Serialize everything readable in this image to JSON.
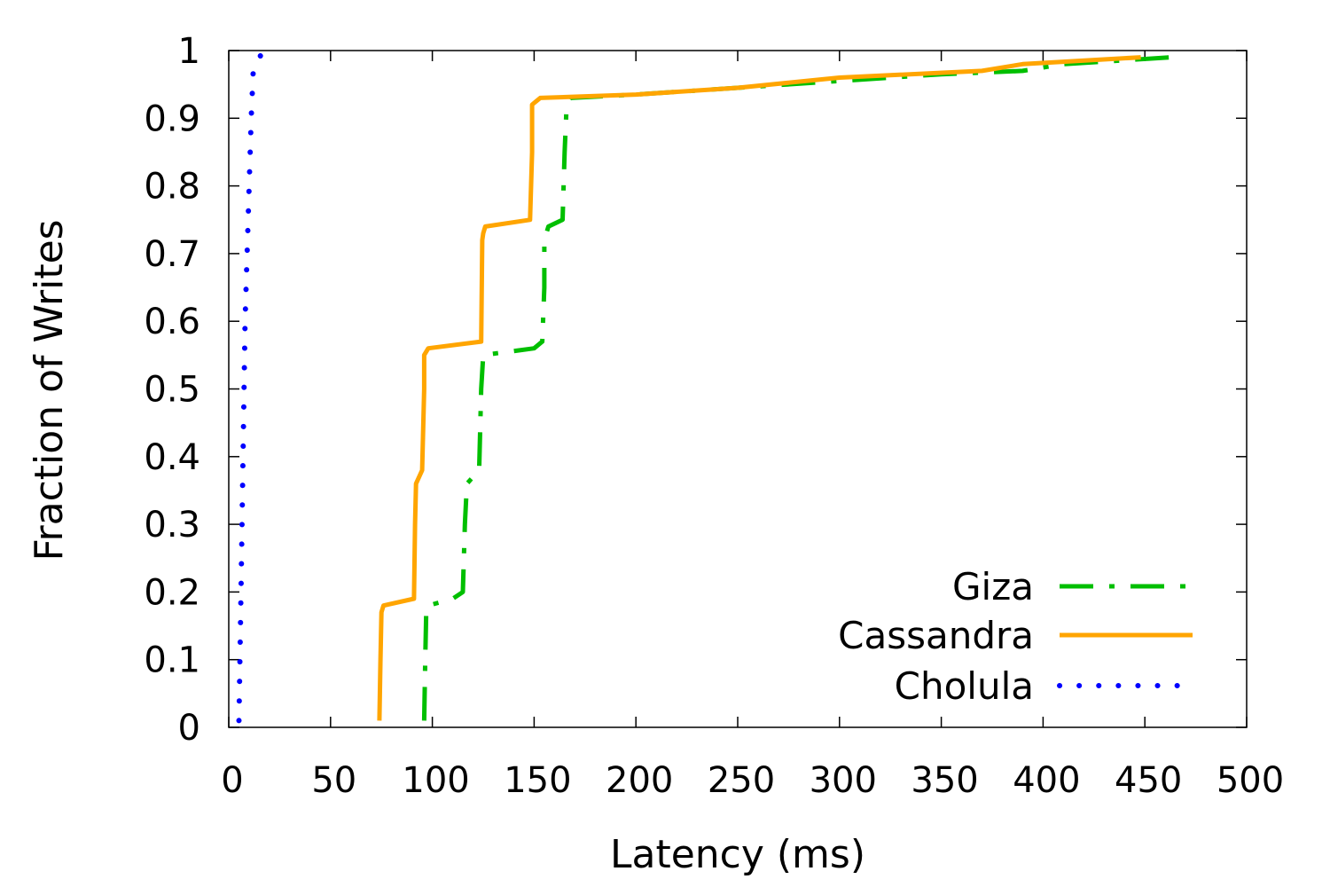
{
  "chart_data": {
    "type": "line",
    "title": "",
    "xlabel": "Latency (ms)",
    "ylabel": "Fraction of Writes",
    "xlim": [
      0,
      500
    ],
    "ylim": [
      0,
      1
    ],
    "x_ticks": [
      0,
      50,
      100,
      150,
      200,
      250,
      300,
      350,
      400,
      450,
      500
    ],
    "x_tick_labels": [
      "0",
      "50",
      "100",
      "150",
      "200",
      "250",
      "300",
      "350",
      "400",
      "450",
      "500"
    ],
    "y_ticks": [
      0,
      0.1,
      0.2,
      0.3,
      0.4,
      0.5,
      0.6,
      0.7,
      0.8,
      0.9,
      1
    ],
    "y_tick_labels": [
      "0",
      "0.1",
      "0.2",
      "0.3",
      "0.4",
      "0.5",
      "0.6",
      "0.7",
      "0.8",
      "0.9",
      "1"
    ],
    "grid": false,
    "legend_position": "bottom-right",
    "series": [
      {
        "name": "Giza",
        "color": "#00bf00",
        "style": "dash-dot",
        "points": [
          [
            96,
            0.01
          ],
          [
            96.5,
            0.1
          ],
          [
            97,
            0.17
          ],
          [
            98,
            0.18
          ],
          [
            110,
            0.19
          ],
          [
            115,
            0.2
          ],
          [
            116,
            0.3
          ],
          [
            117,
            0.36
          ],
          [
            123,
            0.38
          ],
          [
            124,
            0.5
          ],
          [
            125,
            0.55
          ],
          [
            150,
            0.56
          ],
          [
            154,
            0.57
          ],
          [
            155,
            0.65
          ],
          [
            155,
            0.72
          ],
          [
            157,
            0.74
          ],
          [
            164,
            0.75
          ],
          [
            165,
            0.85
          ],
          [
            166,
            0.92
          ],
          [
            168,
            0.93
          ],
          [
            200,
            0.935
          ],
          [
            250,
            0.945
          ],
          [
            300,
            0.955
          ],
          [
            350,
            0.965
          ],
          [
            390,
            0.97
          ],
          [
            410,
            0.98
          ],
          [
            463,
            0.99
          ]
        ]
      },
      {
        "name": "Cassandra",
        "color": "#ffa500",
        "style": "solid",
        "points": [
          [
            74,
            0.01
          ],
          [
            74.5,
            0.1
          ],
          [
            75,
            0.17
          ],
          [
            76,
            0.18
          ],
          [
            91,
            0.19
          ],
          [
            91.5,
            0.3
          ],
          [
            92,
            0.36
          ],
          [
            95,
            0.38
          ],
          [
            96,
            0.5
          ],
          [
            96,
            0.55
          ],
          [
            98,
            0.56
          ],
          [
            124,
            0.57
          ],
          [
            124.5,
            0.72
          ],
          [
            125,
            0.73
          ],
          [
            126,
            0.74
          ],
          [
            148,
            0.75
          ],
          [
            149,
            0.85
          ],
          [
            149,
            0.92
          ],
          [
            151,
            0.925
          ],
          [
            153,
            0.93
          ],
          [
            200,
            0.935
          ],
          [
            250,
            0.945
          ],
          [
            300,
            0.96
          ],
          [
            370,
            0.97
          ],
          [
            390,
            0.98
          ],
          [
            448,
            0.99
          ]
        ]
      },
      {
        "name": "Cholula",
        "color": "#0000ff",
        "style": "dotted",
        "points": [
          [
            5,
            0.01
          ],
          [
            6,
            0.2
          ],
          [
            7,
            0.4
          ],
          [
            8,
            0.6
          ],
          [
            9,
            0.7
          ],
          [
            11,
            0.9
          ],
          [
            12,
            0.97
          ],
          [
            16,
            0.995
          ]
        ]
      }
    ]
  }
}
